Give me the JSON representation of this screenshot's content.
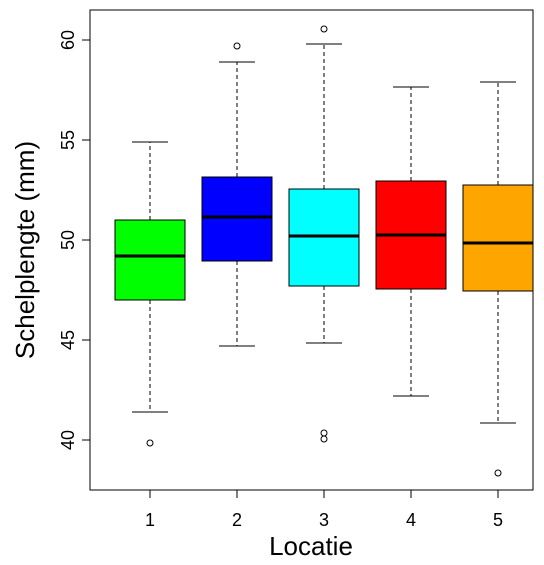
{
  "chart_data": {
    "type": "boxplot",
    "title": "",
    "xlabel": "Locatie",
    "ylabel": "Schelplengte (mm)",
    "ylim": [
      37.5,
      61.5
    ],
    "grid": false,
    "categories": [
      "1",
      "2",
      "3",
      "4",
      "5"
    ],
    "y_ticks": [
      "40",
      "45",
      "50",
      "55",
      "60"
    ],
    "boxes": [
      {
        "category": "1",
        "whisker_low": 41.4,
        "q1": 47.0,
        "median": 49.2,
        "q3": 51.0,
        "whisker_high": 54.9,
        "outliers": [
          39.85
        ],
        "color": "#00ff00"
      },
      {
        "category": "2",
        "whisker_low": 44.7,
        "q1": 48.95,
        "median": 51.15,
        "q3": 53.15,
        "whisker_high": 58.9,
        "outliers": [
          59.7
        ],
        "color": "#0000ff"
      },
      {
        "category": "3",
        "whisker_low": 44.85,
        "q1": 47.7,
        "median": 50.2,
        "q3": 52.55,
        "whisker_high": 59.8,
        "outliers": [
          60.55,
          40.35,
          40.05
        ],
        "color": "#00ffff"
      },
      {
        "category": "4",
        "whisker_low": 42.2,
        "q1": 47.55,
        "median": 50.25,
        "q3": 52.95,
        "whisker_high": 57.65,
        "outliers": [],
        "color": "#ff0000"
      },
      {
        "category": "5",
        "whisker_low": 40.85,
        "q1": 47.45,
        "median": 49.85,
        "q3": 52.75,
        "whisker_high": 57.9,
        "outliers": [
          38.35
        ],
        "color": "#ffa500"
      }
    ]
  }
}
